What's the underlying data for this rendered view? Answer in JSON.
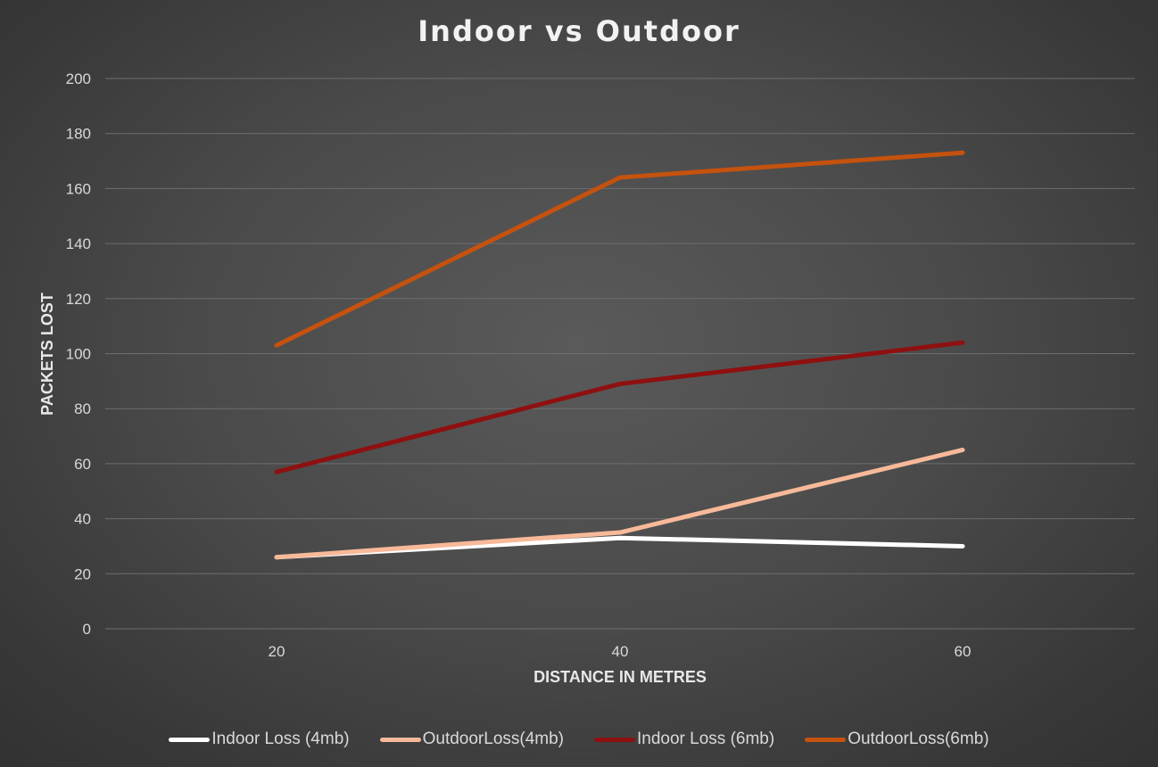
{
  "chart_data": {
    "type": "line",
    "title": "Indoor vs Outdoor",
    "xlabel": "DISTANCE IN METRES",
    "ylabel": "PACKETS LOST",
    "categories": [
      "20",
      "40",
      "60"
    ],
    "ylim": [
      0,
      200
    ],
    "yticks": [
      "0",
      "20",
      "40",
      "60",
      "80",
      "100",
      "120",
      "140",
      "160",
      "180",
      "200"
    ],
    "grid": true,
    "legend_position": "bottom",
    "series": [
      {
        "name": "Indoor Loss (4mb)",
        "values": [
          26,
          33,
          30
        ],
        "color": "#ffffff"
      },
      {
        "name": "OutdoorLoss(4mb)",
        "values": [
          26,
          35,
          65
        ],
        "color": "#f7b999"
      },
      {
        "name": "Indoor Loss (6mb)",
        "values": [
          57,
          89,
          104
        ],
        "color": "#8f1010"
      },
      {
        "name": "OutdoorLoss(6mb)",
        "values": [
          103,
          164,
          173
        ],
        "color": "#c5520e"
      }
    ]
  }
}
